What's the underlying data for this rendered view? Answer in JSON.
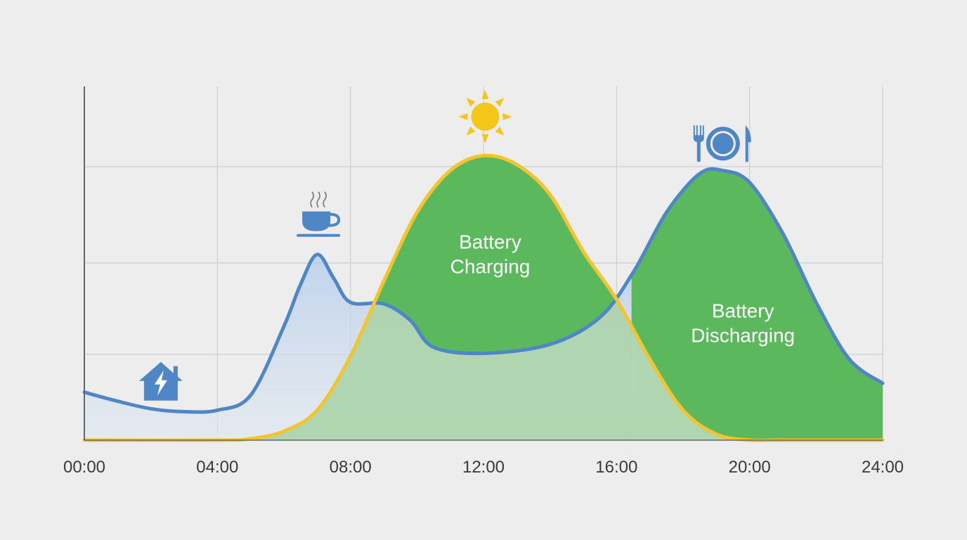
{
  "chart_data": {
    "type": "area",
    "xlim": [
      0,
      24
    ],
    "ylim": [
      0,
      1
    ],
    "x_ticks": [
      "00:00",
      "04:00",
      "08:00",
      "12:00",
      "16:00",
      "20:00",
      "24:00"
    ],
    "grid": true,
    "series": [
      {
        "color": "#4f86c6",
        "x": [
          0,
          1,
          2,
          3,
          4,
          5,
          6,
          6.5,
          7,
          7.5,
          8,
          9,
          9.8,
          10.5,
          12,
          14,
          15.5,
          16.5,
          17.5,
          18.5,
          19.2,
          20,
          21,
          22,
          23,
          24
        ],
        "y": [
          0.16,
          0.13,
          0.105,
          0.095,
          0.1,
          0.15,
          0.38,
          0.52,
          0.62,
          0.54,
          0.46,
          0.455,
          0.4,
          0.31,
          0.29,
          0.32,
          0.41,
          0.56,
          0.76,
          0.89,
          0.9,
          0.86,
          0.69,
          0.46,
          0.27,
          0.19
        ]
      },
      {
        "color": "#f2c530",
        "x": [
          0,
          4,
          5,
          6,
          7,
          8,
          9,
          10,
          11,
          12,
          13,
          14,
          15,
          16,
          17,
          18,
          19,
          20,
          21,
          24
        ],
        "y": [
          0,
          0,
          0.005,
          0.03,
          0.1,
          0.28,
          0.53,
          0.76,
          0.9,
          0.95,
          0.92,
          0.82,
          0.63,
          0.47,
          0.27,
          0.1,
          0.02,
          0,
          0,
          0
        ]
      }
    ],
    "annotations": [
      {
        "text": "Battery Charging",
        "lines": [
          "Battery",
          "Charging"
        ],
        "x": 12.2,
        "y": 0.64
      },
      {
        "text": "Battery Discharging",
        "lines": [
          "Battery",
          "Discharging"
        ],
        "x": 19.8,
        "y": 0.41
      }
    ],
    "icons": [
      {
        "name": "house-bolt-icon",
        "x": 2.3,
        "y": 0.2,
        "color": "#4f86c6"
      },
      {
        "name": "coffee-cup-icon",
        "x": 7.1,
        "y": 0.74,
        "color": "#4f86c6"
      },
      {
        "name": "sun-icon",
        "x": 12.05,
        "y": 1.08,
        "color": "#f5c518"
      },
      {
        "name": "fork-plate-knife-icon",
        "x": 19.2,
        "y": 0.99,
        "color": "#4f86c6"
      }
    ],
    "colors": {
      "charging_fill": "#5cb85c",
      "consumption_fill": "#a9c6e8",
      "gradient_fill": "#b9d4c4",
      "grid": "#cfcfcf",
      "axis": "#666666"
    }
  }
}
